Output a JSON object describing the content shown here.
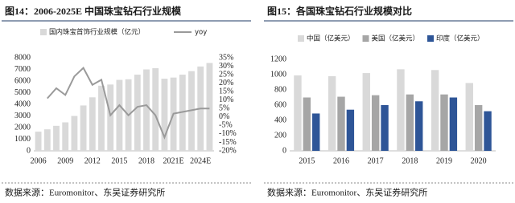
{
  "chart_data": [
    {
      "type": "bar",
      "title": "图14：2006-2025E 中国珠宝钻石行业规模",
      "categories": [
        "2006",
        null,
        null,
        "2009",
        null,
        null,
        "2012",
        null,
        null,
        "2015",
        null,
        null,
        "2018",
        null,
        null,
        "2021E",
        null,
        null,
        "2024E",
        null
      ],
      "series": [
        {
          "name": "国内珠宝首饰行业规模（亿元）",
          "type": "bar",
          "color": "#d9d9d9",
          "values": [
            1650,
            1850,
            2150,
            2450,
            3000,
            3900,
            4600,
            5600,
            5700,
            6100,
            6150,
            6550,
            7000,
            7100,
            6200,
            6300,
            6550,
            6850,
            7250,
            7550
          ]
        },
        {
          "name": "yoy",
          "type": "line",
          "axis": "y2",
          "color": "#9a9a9a",
          "values": [
            null,
            11,
            17,
            13,
            24,
            29,
            19,
            22,
            1,
            7,
            1,
            6,
            7,
            1,
            -12,
            2,
            3,
            4,
            5,
            5
          ]
        }
      ],
      "ylim": [
        0,
        8000
      ],
      "yticks": [
        0,
        1000,
        2000,
        3000,
        4000,
        5000,
        6000,
        7000,
        8000
      ],
      "y2lim": [
        -20,
        35
      ],
      "y2ticks": [
        {
          "value": -20,
          "label": "-20%"
        },
        {
          "value": -15,
          "label": "-15%"
        },
        {
          "value": -10,
          "label": "-10%"
        },
        {
          "value": -5,
          "label": "-5%"
        },
        {
          "value": 0,
          "label": "0%"
        },
        {
          "value": 5,
          "label": "5%"
        },
        {
          "value": 10,
          "label": "10%"
        },
        {
          "value": 15,
          "label": "15%"
        },
        {
          "value": 20,
          "label": "20%"
        },
        {
          "value": 25,
          "label": "25%"
        },
        {
          "value": 30,
          "label": "30%"
        },
        {
          "value": 35,
          "label": "35%"
        }
      ],
      "grid": false,
      "source": "数据来源：Euromonitor、东吴证券研究所"
    },
    {
      "type": "grouped-bar",
      "title": "图15：各国珠宝钻石行业规模对比",
      "categories": [
        "2015",
        "2016",
        "2017",
        "2018",
        "2019",
        "2020"
      ],
      "series": [
        {
          "name": "中国（亿美元）",
          "color": "#d9d9d9",
          "values": [
            990,
            980,
            1020,
            1070,
            1060,
            890
          ]
        },
        {
          "name": "美国（亿美元）",
          "color": "#a6a6a6",
          "values": [
            700,
            710,
            730,
            740,
            740,
            600
          ]
        },
        {
          "name": "印度（亿美元）",
          "color": "#2e5597",
          "values": [
            490,
            540,
            600,
            650,
            700,
            520
          ]
        }
      ],
      "ylim": [
        0,
        1200
      ],
      "yticks": [
        0,
        200,
        400,
        600,
        800,
        1000,
        1200
      ],
      "grid": false,
      "source": "数据来源：Euromonitor、东吴证券研究所"
    }
  ]
}
